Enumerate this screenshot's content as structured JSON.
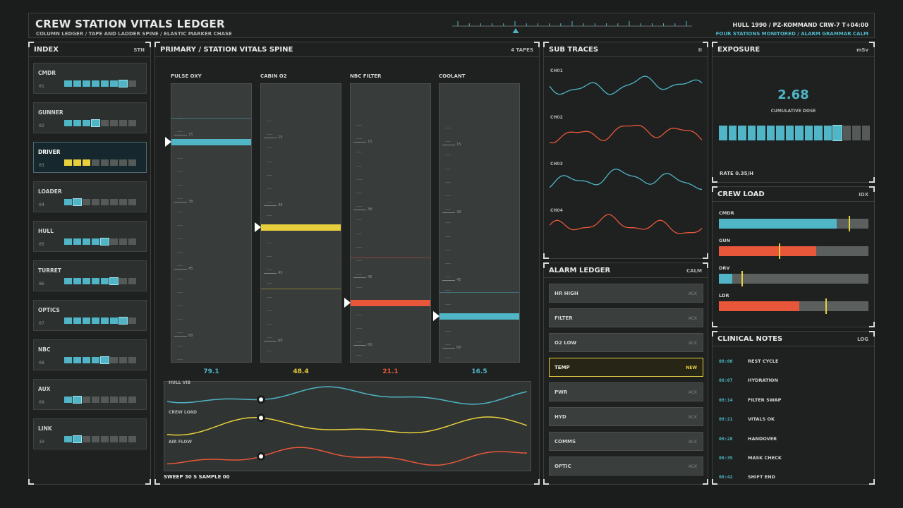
{
  "header": {
    "title": "CREW STATION VITALS LEDGER",
    "subtitle": "COLUMN LEDGER / TAPE AND LADDER SPINE / ELASTIC MARKER CHASE",
    "hull_id": "HULL 1990 / PZ-KOMMAND  CRW-7  T+04:00",
    "status": "FOUR STATIONS MONITORED / ALARM GRAMMAR CALM"
  },
  "index": {
    "title": "INDEX",
    "tag": "STN",
    "stations": [
      {
        "name": "CMDR",
        "num": "01",
        "filled": 7,
        "color": "#4fb5c7"
      },
      {
        "name": "GUNNER",
        "num": "02",
        "filled": 4,
        "color": "#4fb5c7"
      },
      {
        "name": "DRIVER",
        "num": "03",
        "filled": 3,
        "color": "#e8cf3c",
        "active": true
      },
      {
        "name": "LOADER",
        "num": "04",
        "filled": 2,
        "color": "#4fb5c7"
      },
      {
        "name": "HULL",
        "num": "05",
        "filled": 5,
        "color": "#4fb5c7"
      },
      {
        "name": "TURRET",
        "num": "06",
        "filled": 6,
        "color": "#4fb5c7"
      },
      {
        "name": "OPTICS",
        "num": "07",
        "filled": 7,
        "color": "#4fb5c7"
      },
      {
        "name": "NBC",
        "num": "08",
        "filled": 5,
        "color": "#4fb5c7"
      },
      {
        "name": "AUX",
        "num": "09",
        "filled": 2,
        "color": "#4fb5c7"
      },
      {
        "name": "LINK",
        "num": "10",
        "filled": 2,
        "color": "#4fb5c7"
      }
    ]
  },
  "primary": {
    "title": "PRIMARY / STATION VITALS SPINE",
    "tag": "4 TAPES",
    "tapes": [
      {
        "label": "PULSE OXY",
        "value": "79.1",
        "color": "#4fb5c7",
        "level": 0.79
      },
      {
        "label": "CABIN O2",
        "value": "48.4",
        "color": "#e8cf3c",
        "level": 0.48
      },
      {
        "label": "NBC FILTER",
        "value": "21.1",
        "color": "#e9573a",
        "level": 0.21
      },
      {
        "label": "COOLANT",
        "value": "16.5",
        "color": "#4fb5c7",
        "level": 0.17
      }
    ],
    "tick_labels": [
      "15",
      "30",
      "45",
      "60"
    ],
    "chase": [
      {
        "label": "HULL VIB",
        "color": "#4fb5c7"
      },
      {
        "label": "CREW LOAD",
        "color": "#e8cf3c"
      },
      {
        "label": "AIR FLOW",
        "color": "#e9573a"
      }
    ],
    "sweep": "SWEEP 30 S   SAMPLE 00"
  },
  "subtraces": {
    "title": "SUB TRACES",
    "tag": "II",
    "channels": [
      {
        "label": "CH01",
        "color": "#4fb5c7"
      },
      {
        "label": "CH02",
        "color": "#e9573a"
      },
      {
        "label": "CH03",
        "color": "#4fb5c7"
      },
      {
        "label": "CH04",
        "color": "#e9573a"
      }
    ]
  },
  "alarms": {
    "title": "ALARM LEDGER",
    "tag": "CALM",
    "items": [
      {
        "name": "HR HIGH",
        "state": "ACK"
      },
      {
        "name": "FILTER",
        "state": "ACK"
      },
      {
        "name": "O2 LOW",
        "state": "ACK"
      },
      {
        "name": "TEMP",
        "state": "NEW",
        "new": true
      },
      {
        "name": "PWR",
        "state": "ACK"
      },
      {
        "name": "HYD",
        "state": "ACK"
      },
      {
        "name": "COMMS",
        "state": "ACK"
      },
      {
        "name": "OPTIC",
        "state": "ACK"
      }
    ]
  },
  "exposure": {
    "title": "EXPOSURE",
    "tag": "mSv",
    "dose": "2.68",
    "dose_label": "CUMULATIVE DOSE",
    "rate": "RATE 0.35/H",
    "segments_total": 16,
    "segments_filled": 13
  },
  "crew_load": {
    "title": "CREW LOAD",
    "tag": "IDX",
    "rows": [
      {
        "label": "CMDR",
        "fill": 0.79,
        "marker": 0.87,
        "color": "#4fb5c7"
      },
      {
        "label": "GUN",
        "fill": 0.65,
        "marker": 0.4,
        "color": "#e9573a"
      },
      {
        "label": "DRV",
        "fill": 0.09,
        "marker": 0.15,
        "color": "#4fb5c7"
      },
      {
        "label": "LDR",
        "fill": 0.54,
        "marker": 0.71,
        "color": "#e9573a"
      }
    ]
  },
  "notes": {
    "title": "CLINICAL NOTES",
    "tag": "LOG",
    "entries": [
      {
        "time": "08:00",
        "text": "REST CYCLE"
      },
      {
        "time": "08:07",
        "text": "HYDRATION"
      },
      {
        "time": "08:14",
        "text": "FILTER SWAP"
      },
      {
        "time": "08:21",
        "text": "VITALS OK"
      },
      {
        "time": "08:28",
        "text": "HANDOVER"
      },
      {
        "time": "08:35",
        "text": "MASK CHECK"
      },
      {
        "time": "08:42",
        "text": "SHIFT END"
      }
    ]
  }
}
